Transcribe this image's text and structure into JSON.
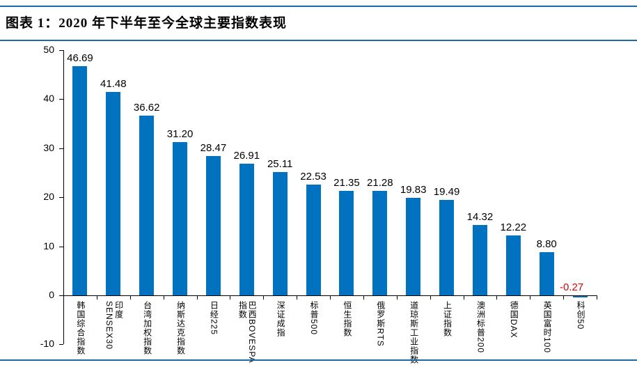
{
  "header": {
    "title": "图表 1：2020 年下半年至今全球主要指数表现"
  },
  "colors": {
    "bar": "#0072C0",
    "rule": "#1A6AAE",
    "axis": "#000000",
    "value_label": "#000000",
    "negative_value_label": "#E00000"
  },
  "chart_data": {
    "type": "bar",
    "title": "图表 1：2020 年下半年至今全球主要指数表现",
    "xlabel": "",
    "ylabel": "",
    "categories": [
      "韩国综合指数",
      "印度SENSEX30",
      "台湾加权指数",
      "纳斯达克指数",
      "日经225",
      "巴西BOVESPA指数",
      "深证成指",
      "标普500",
      "恒生指数",
      "俄罗斯RTS",
      "道琼斯工业指数",
      "上证指数",
      "澳洲标普200",
      "德国DAX",
      "英国富时100",
      "科创50"
    ],
    "values": [
      46.69,
      41.48,
      36.62,
      31.2,
      28.47,
      26.91,
      25.11,
      22.53,
      21.35,
      21.28,
      19.83,
      19.49,
      14.32,
      12.22,
      8.8,
      -0.27
    ],
    "value_labels": [
      "46.69",
      "41.48",
      "36.62",
      "31.20",
      "28.47",
      "26.91",
      "25.11",
      "22.53",
      "21.35",
      "21.28",
      "19.83",
      "19.49",
      "14.32",
      "12.22",
      "8.80",
      "-0.27"
    ],
    "yticks": [
      50,
      40,
      30,
      20,
      10,
      0,
      -10
    ],
    "ylim": [
      -10,
      50
    ],
    "grid": false,
    "legend": "none",
    "bar_color": "#0072C0"
  }
}
